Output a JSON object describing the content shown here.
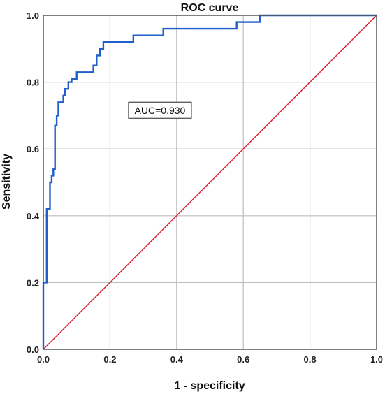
{
  "chart_data": {
    "type": "line",
    "title": "ROC curve",
    "xlabel": "1 - specificity",
    "ylabel": "Sensitivity",
    "xlim": [
      0,
      1
    ],
    "ylim": [
      0,
      1
    ],
    "grid": true,
    "x_ticks": [
      "0.0",
      "0.2",
      "0.4",
      "0.6",
      "0.8",
      "1.0"
    ],
    "y_ticks": [
      "0.0",
      "0.2",
      "0.4",
      "0.6",
      "0.8",
      "1.0"
    ],
    "annotation": "AUC=0.930",
    "colors": {
      "roc": "#1f5fc8",
      "reference": "#d62836",
      "grid": "#bdbdbd",
      "frame": "#555555"
    },
    "series": [
      {
        "values": [
          [
            0.0,
            0.0
          ],
          [
            0.0,
            0.2
          ],
          [
            0.01,
            0.2
          ],
          [
            0.01,
            0.42
          ],
          [
            0.02,
            0.42
          ],
          [
            0.02,
            0.5
          ],
          [
            0.025,
            0.5
          ],
          [
            0.025,
            0.52
          ],
          [
            0.03,
            0.52
          ],
          [
            0.03,
            0.54
          ],
          [
            0.035,
            0.54
          ],
          [
            0.035,
            0.67
          ],
          [
            0.04,
            0.67
          ],
          [
            0.04,
            0.7
          ],
          [
            0.045,
            0.7
          ],
          [
            0.045,
            0.74
          ],
          [
            0.06,
            0.74
          ],
          [
            0.06,
            0.76
          ],
          [
            0.065,
            0.76
          ],
          [
            0.065,
            0.78
          ],
          [
            0.075,
            0.78
          ],
          [
            0.075,
            0.8
          ],
          [
            0.085,
            0.8
          ],
          [
            0.085,
            0.81
          ],
          [
            0.1,
            0.81
          ],
          [
            0.1,
            0.83
          ],
          [
            0.15,
            0.83
          ],
          [
            0.15,
            0.85
          ],
          [
            0.16,
            0.85
          ],
          [
            0.16,
            0.88
          ],
          [
            0.17,
            0.88
          ],
          [
            0.17,
            0.9
          ],
          [
            0.18,
            0.9
          ],
          [
            0.18,
            0.92
          ],
          [
            0.27,
            0.92
          ],
          [
            0.27,
            0.94
          ],
          [
            0.36,
            0.94
          ],
          [
            0.36,
            0.96
          ],
          [
            0.58,
            0.96
          ],
          [
            0.58,
            0.98
          ],
          [
            0.65,
            0.98
          ],
          [
            0.65,
            1.0
          ],
          [
            1.0,
            1.0
          ]
        ]
      },
      {
        "values": [
          [
            0,
            0
          ],
          [
            1,
            1
          ]
        ]
      }
    ]
  }
}
